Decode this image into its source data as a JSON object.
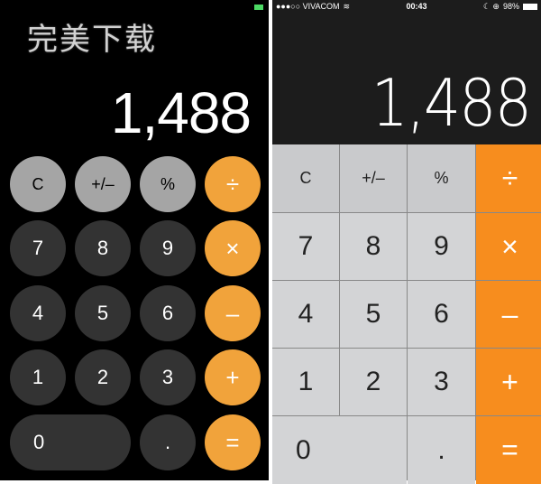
{
  "left": {
    "display": "1,488",
    "battery_color": "#4cd964",
    "keys": [
      [
        "C",
        "+/–",
        "%",
        "÷"
      ],
      [
        "7",
        "8",
        "9",
        "×"
      ],
      [
        "4",
        "5",
        "6",
        "–"
      ],
      [
        "1",
        "2",
        "3",
        "+"
      ],
      [
        "0",
        ".",
        "="
      ]
    ]
  },
  "right": {
    "status": {
      "carrier": "●●●○○ VIVACOM",
      "wifi": "wifi-icon",
      "time": "00:43",
      "icons": "☾ ⊕",
      "battery": "98%"
    },
    "display": "1,488",
    "keys": [
      [
        "C",
        "+/–",
        "%",
        "÷"
      ],
      [
        "7",
        "8",
        "9",
        "×"
      ],
      [
        "4",
        "5",
        "6",
        "–"
      ],
      [
        "1",
        "2",
        "3",
        "+"
      ],
      [
        "0",
        ".",
        "="
      ]
    ]
  },
  "watermark": "完美下载",
  "colors": {
    "orange_left": "#f1a33b",
    "orange_right": "#f78d1e"
  }
}
